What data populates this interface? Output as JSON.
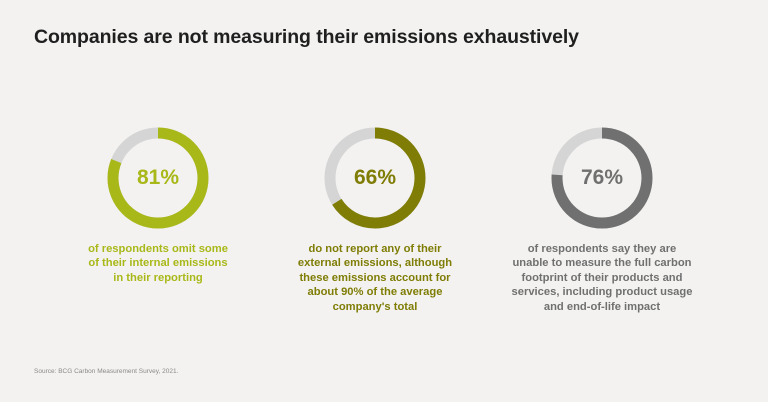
{
  "title": "Companies are not measuring their emissions exhaustively",
  "source": "Source: BCG Carbon Measurement Survey, 2021.",
  "colors": {
    "track": "#d5d5d5",
    "background": "#f3f2f0"
  },
  "chart_data": [
    {
      "type": "pie",
      "value_label": "81%",
      "values": [
        81,
        19
      ],
      "color": "#a9b819",
      "description_lines": [
        "of respondents omit some",
        "of their internal emissions",
        "in their reporting"
      ]
    },
    {
      "type": "pie",
      "value_label": "66%",
      "values": [
        66,
        34
      ],
      "color": "#7f7d06",
      "description_lines": [
        "do not report any of their",
        "external emissions, although",
        "these emissions account for",
        "about 90% of the average",
        "company's total"
      ]
    },
    {
      "type": "pie",
      "value_label": "76%",
      "values": [
        76,
        24
      ],
      "color": "#707070",
      "description_lines": [
        "of respondents say they are",
        "unable to measure the full carbon",
        "footprint of their products and",
        "services, including product usage",
        "and end-of-life impact"
      ]
    }
  ]
}
